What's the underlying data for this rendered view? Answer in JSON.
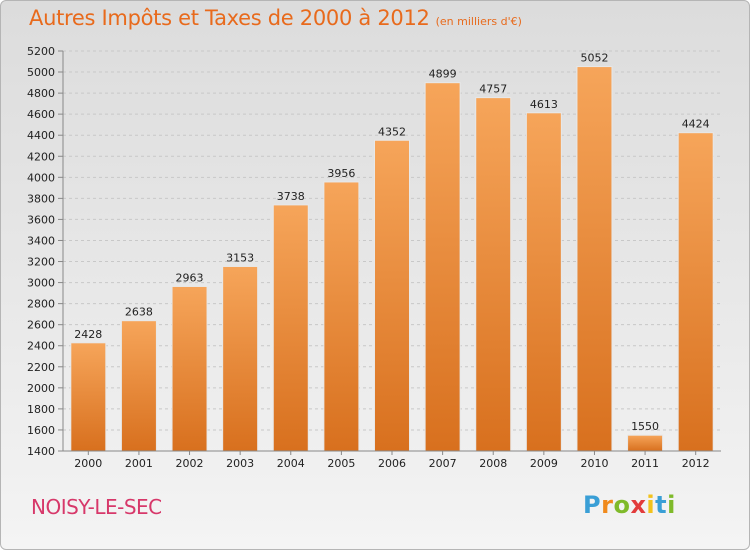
{
  "chart_data": {
    "type": "bar",
    "title": "Autres Impôts et Taxes de 2000 à 2012",
    "subtitle": "(en milliers d'€)",
    "categories": [
      "2000",
      "2001",
      "2002",
      "2003",
      "2004",
      "2005",
      "2006",
      "2007",
      "2008",
      "2009",
      "2010",
      "2011",
      "2012"
    ],
    "values": [
      2428,
      2638,
      2963,
      3153,
      3738,
      3956,
      4352,
      4899,
      4757,
      4613,
      5052,
      1550,
      4424
    ],
    "ylim": [
      1400,
      5200
    ],
    "ytick_step": 200,
    "grid": true,
    "bar_color": "#f0913a",
    "xlabel": "",
    "ylabel": ""
  },
  "location": "NOISY-LE-SEC",
  "brand": {
    "letters": [
      "P",
      "r",
      "o",
      "x",
      "i",
      "t",
      "i"
    ],
    "colors": [
      "#3a9fd6",
      "#f08a1c",
      "#7fba2a",
      "#e23b3b",
      "#f2c21c",
      "#3a9fd6",
      "#7fba2a"
    ]
  }
}
